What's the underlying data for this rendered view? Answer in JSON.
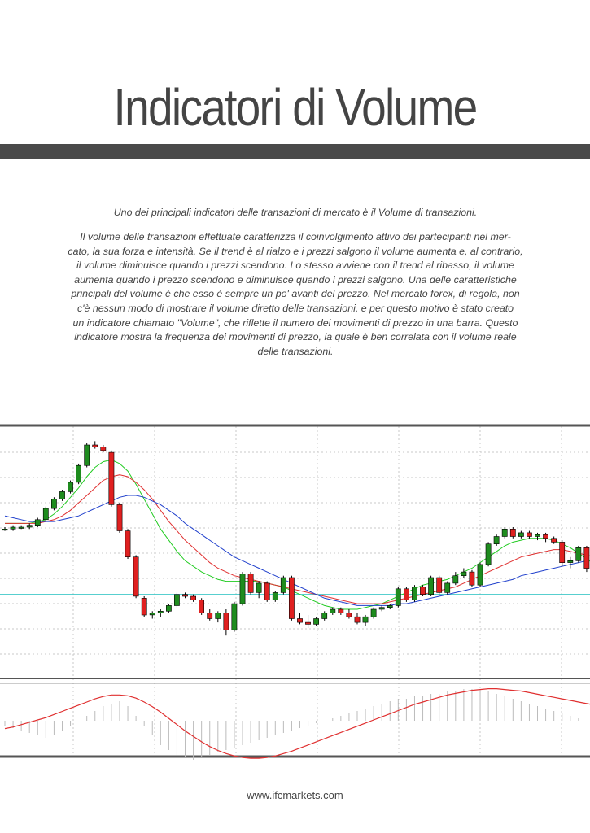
{
  "title": "Indicatori di Volume",
  "intro": "Uno dei principali indicatori delle transazioni di mercato è il Volume di transazioni.",
  "body_lines": [
    "Il volume delle transazioni effettuate caratterizza il coinvolgimento attivo dei partecipanti nel mer-",
    "cato, la sua forza e intensità. Se il trend è al rialzo e i prezzi salgono il volume aumenta e, al contrario,",
    "il volume diminuisce quando i prezzi scendono. Lo stesso avviene con il trend al ribasso, il volume",
    "aumenta quando i prezzo scendono e diminuisce quando i prezzi salgono. Una delle caratteristiche",
    "principali del volume è che esso è sempre un po' avanti del prezzo. Nel mercato forex, di regola, non",
    "c'è nessun modo di mostrare il volume diretto delle transazioni, e per questo motivo è stato creato",
    "un indicatore chiamato \"Volume\", che riflette il numero dei movimenti di prezzo in una barra. Questo",
    "indicatore mostra la frequenza dei movimenti di prezzo, la quale è ben correlata con il volume reale",
    "delle transazioni."
  ],
  "footer": "www.ifcmarkets.com",
  "colors": {
    "text": "#444444",
    "bar": "#4a4a4a",
    "bull_candle": "#1e8c1e",
    "bear_candle": "#e02020",
    "ma_fast": "#22cc22",
    "ma_mid": "#e03030",
    "ma_slow": "#2040cc",
    "level_line": "#40c8c8",
    "grid": "#c8c8c8"
  },
  "chart_data": {
    "type": "candlestick",
    "title": "",
    "xlabel": "",
    "ylabel": "",
    "grid": true,
    "ylim": [
      -35,
      100
    ],
    "candles": [
      [
        45,
        46,
        44,
        45
      ],
      [
        45,
        47,
        44,
        46
      ],
      [
        46,
        47,
        45,
        46
      ],
      [
        46,
        48,
        45,
        47
      ],
      [
        47,
        51,
        46,
        50
      ],
      [
        50,
        57,
        49,
        56
      ],
      [
        56,
        62,
        55,
        61
      ],
      [
        61,
        66,
        60,
        65
      ],
      [
        65,
        71,
        64,
        70
      ],
      [
        70,
        80,
        69,
        79
      ],
      [
        79,
        91,
        78,
        90
      ],
      [
        90,
        92,
        88,
        89
      ],
      [
        89,
        90,
        86,
        87
      ],
      [
        86,
        87,
        57,
        58
      ],
      [
        58,
        59,
        43,
        44
      ],
      [
        44,
        45,
        29,
        30
      ],
      [
        30,
        31,
        8,
        9
      ],
      [
        8,
        9,
        -2,
        -1
      ],
      [
        -1,
        1,
        -3,
        0
      ],
      [
        0,
        2,
        -2,
        1
      ],
      [
        1,
        5,
        0,
        4
      ],
      [
        4,
        11,
        3,
        10
      ],
      [
        10,
        11,
        8,
        9
      ],
      [
        9,
        10,
        6,
        7
      ],
      [
        7,
        8,
        -1,
        0
      ],
      [
        0,
        2,
        -4,
        -3
      ],
      [
        -3,
        1,
        -5,
        0
      ],
      [
        0,
        2,
        -12,
        -9
      ],
      [
        -9,
        6,
        -10,
        5
      ],
      [
        5,
        22,
        4,
        21
      ],
      [
        21,
        22,
        10,
        11
      ],
      [
        11,
        17,
        8,
        16
      ],
      [
        16,
        17,
        6,
        7
      ],
      [
        7,
        12,
        6,
        11
      ],
      [
        11,
        20,
        10,
        19
      ],
      [
        19,
        20,
        -4,
        -3
      ],
      [
        -3,
        0,
        -6,
        -5
      ],
      [
        -5,
        -1,
        -8,
        -6
      ],
      [
        -6,
        -2,
        -7,
        -3
      ],
      [
        -3,
        1,
        -4,
        0
      ],
      [
        0,
        3,
        -1,
        2
      ],
      [
        2,
        3,
        -1,
        0
      ],
      [
        0,
        2,
        -3,
        -2
      ],
      [
        -2,
        0,
        -6,
        -5
      ],
      [
        -5,
        -1,
        -7,
        -2
      ],
      [
        -2,
        3,
        -3,
        2
      ],
      [
        2,
        4,
        1,
        3
      ],
      [
        3,
        5,
        2,
        4
      ],
      [
        4,
        14,
        3,
        13
      ],
      [
        13,
        14,
        6,
        7
      ],
      [
        7,
        15,
        6,
        14
      ],
      [
        14,
        15,
        9,
        10
      ],
      [
        10,
        20,
        9,
        19
      ],
      [
        19,
        20,
        10,
        11
      ],
      [
        11,
        17,
        10,
        16
      ],
      [
        16,
        22,
        15,
        20
      ],
      [
        20,
        24,
        19,
        22
      ],
      [
        22,
        23,
        14,
        15
      ],
      [
        15,
        27,
        14,
        26
      ],
      [
        26,
        38,
        25,
        37
      ],
      [
        37,
        42,
        36,
        41
      ],
      [
        41,
        46,
        40,
        45
      ],
      [
        45,
        46,
        40,
        41
      ],
      [
        41,
        44,
        40,
        43
      ],
      [
        43,
        44,
        40,
        41
      ],
      [
        41,
        43,
        39,
        42
      ],
      [
        42,
        43,
        38,
        40
      ],
      [
        40,
        41,
        37,
        38
      ],
      [
        38,
        39,
        25,
        27
      ],
      [
        27,
        30,
        24,
        28
      ],
      [
        28,
        36,
        27,
        35
      ],
      [
        35,
        36,
        22,
        24
      ],
      [
        24,
        25,
        11,
        12
      ]
    ],
    "series": [
      {
        "values": [
          48,
          48,
          48,
          48,
          49,
          50,
          53,
          57,
          62,
          67,
          73,
          78,
          81,
          82,
          80,
          76,
          69,
          61,
          53,
          45,
          39,
          33,
          28,
          25,
          22,
          20,
          18,
          17,
          17,
          17,
          17,
          17,
          16,
          15,
          14,
          12,
          10,
          8,
          6,
          4,
          3,
          2,
          2,
          2,
          3,
          4,
          5,
          7,
          9,
          11,
          13,
          15,
          16,
          17,
          18,
          20,
          22,
          24,
          27,
          30,
          33,
          36,
          38,
          39,
          40,
          40,
          40,
          39,
          37,
          35,
          32,
          29,
          26
        ]
      },
      {
        "values": [
          48,
          48,
          48,
          48,
          48,
          49,
          50,
          52,
          55,
          59,
          63,
          67,
          71,
          73,
          74,
          73,
          70,
          66,
          61,
          55,
          49,
          44,
          39,
          35,
          31,
          27,
          24,
          22,
          20,
          19,
          18,
          17,
          16,
          15,
          14,
          13,
          12,
          11,
          10,
          9,
          8,
          7,
          6,
          5,
          5,
          5,
          5,
          6,
          7,
          8,
          9,
          10,
          11,
          12,
          13,
          14,
          16,
          18,
          20,
          22,
          24,
          26,
          28,
          30,
          31,
          32,
          33,
          34,
          34,
          33,
          32,
          31,
          30
        ]
      },
      {
        "values": [
          52,
          51,
          50,
          49,
          49,
          49,
          49,
          50,
          51,
          52,
          54,
          56,
          58,
          60,
          62,
          63,
          63,
          62,
          60,
          58,
          55,
          52,
          48,
          45,
          42,
          39,
          36,
          33,
          30,
          28,
          26,
          24,
          22,
          20,
          18,
          16,
          14,
          12,
          10,
          8,
          7,
          6,
          5,
          4,
          4,
          4,
          4,
          4,
          5,
          5,
          6,
          7,
          8,
          9,
          10,
          11,
          12,
          13,
          14,
          15,
          16,
          17,
          18,
          20,
          21,
          22,
          23,
          24,
          25,
          26,
          27,
          28,
          29
        ]
      }
    ],
    "hline": 10,
    "histogram": [
      -1,
      -1.5,
      -2,
      -2.5,
      -3,
      -3.5,
      -3,
      -2,
      -1,
      0,
      1,
      2,
      3,
      3.5,
      4,
      3,
      1,
      -1,
      -3,
      -5,
      -6,
      -7,
      -7.5,
      -8,
      -7.5,
      -7,
      -6.5,
      -6,
      -5.5,
      -5,
      -4.5,
      -4,
      -3.5,
      -3,
      -2.5,
      -2,
      -1.5,
      -1,
      -0.5,
      0,
      0.5,
      1,
      1.5,
      2,
      2.5,
      3,
      3.5,
      4,
      4.5,
      4.5,
      5,
      5,
      5.5,
      5.5,
      6,
      6,
      6.5,
      6.5,
      6.5,
      6,
      5.5,
      5,
      4.5,
      4,
      3.5,
      3,
      2.5,
      2,
      1.5,
      1,
      0.5,
      0,
      -0.5
    ],
    "signal": [
      -1,
      -0.8,
      -0.5,
      -0.2,
      0.1,
      0.4,
      0.8,
      1.2,
      1.6,
      2,
      2.4,
      2.8,
      3.1,
      3.3,
      3.3,
      3.2,
      2.9,
      2.4,
      1.8,
      1.1,
      0.3,
      -0.5,
      -1.3,
      -2,
      -2.7,
      -3.3,
      -3.8,
      -4.2,
      -4.5,
      -4.7,
      -4.8,
      -4.8,
      -4.7,
      -4.5,
      -4.2,
      -3.9,
      -3.5,
      -3.1,
      -2.7,
      -2.3,
      -1.9,
      -1.5,
      -1.1,
      -0.7,
      -0.3,
      0.1,
      0.5,
      0.9,
      1.3,
      1.7,
      2.1,
      2.4,
      2.7,
      3,
      3.3,
      3.5,
      3.7,
      3.9,
      4,
      4.1,
      4.1,
      4,
      3.9,
      3.8,
      3.6,
      3.4,
      3.2,
      3,
      2.8,
      2.6,
      2.4,
      2.2,
      2
    ]
  }
}
